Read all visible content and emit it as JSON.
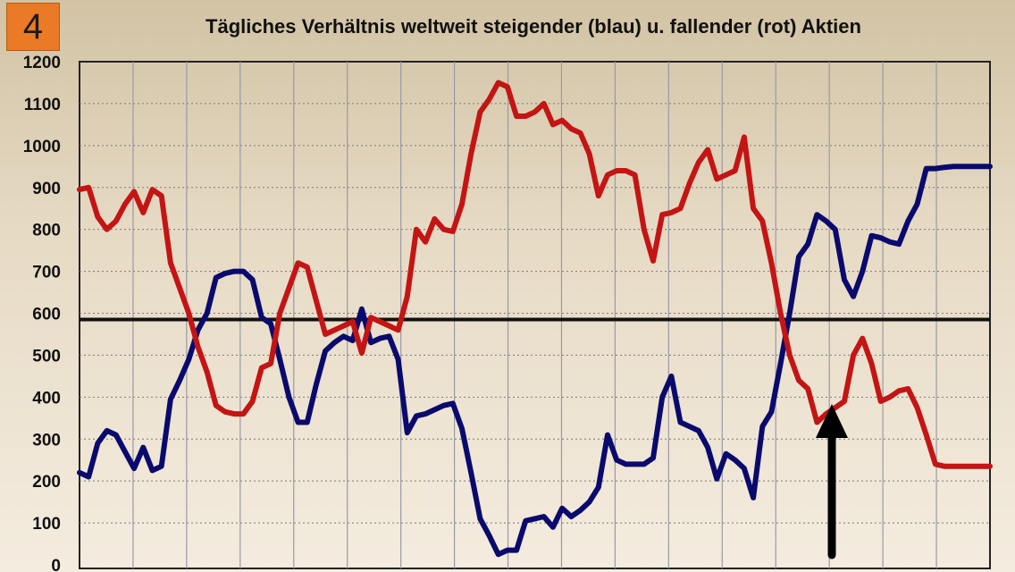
{
  "slide_number": "4",
  "chart_data": {
    "type": "line",
    "title": "Tägliches Verhältnis weltweit steigender (blau) u. fallender (rot) Aktien",
    "xlabel": "",
    "ylabel": "",
    "ylim": [
      0,
      1200
    ],
    "yticks": [
      0,
      100,
      200,
      300,
      400,
      500,
      600,
      700,
      800,
      900,
      1000,
      1100,
      1200
    ],
    "xlim": [
      0,
      100
    ],
    "grid": true,
    "reference_line": 585,
    "annotation": "arrow pointing up at the crossing of both series",
    "colors": {
      "blue": "#0a0a6e",
      "red": "#c41414",
      "reference": "#111111"
    },
    "series": [
      {
        "color": "#0a0a6e",
        "x": [
          0,
          1,
          2,
          3,
          4,
          5,
          6,
          7,
          8,
          9,
          10,
          11,
          12,
          13,
          14,
          15,
          16,
          17,
          18,
          19,
          20,
          21,
          22,
          23,
          24,
          25,
          26,
          27,
          28,
          29,
          30,
          31,
          32,
          33,
          34,
          35,
          36,
          37,
          38,
          39,
          40,
          41,
          42,
          43,
          44,
          45,
          46,
          47,
          48,
          49,
          50,
          51,
          52,
          53,
          54,
          55,
          56,
          57,
          58,
          59,
          60,
          61,
          62,
          63,
          64,
          65,
          66,
          67,
          68,
          69,
          70,
          71,
          72,
          73,
          74,
          75,
          76,
          77,
          78,
          79,
          80,
          81,
          82,
          83,
          84,
          85,
          86,
          87,
          88,
          89,
          90,
          91,
          92,
          93,
          94,
          95,
          96,
          97,
          98,
          99,
          100
        ],
        "values": [
          220,
          210,
          290,
          320,
          310,
          270,
          230,
          280,
          225,
          235,
          395,
          440,
          490,
          560,
          600,
          685,
          695,
          700,
          700,
          680,
          590,
          575,
          490,
          400,
          340,
          340,
          430,
          510,
          530,
          545,
          535,
          610,
          530,
          540,
          545,
          490,
          315,
          355,
          360,
          370,
          380,
          385,
          325,
          220,
          110,
          70,
          25,
          35,
          35,
          105,
          110,
          115,
          90,
          135,
          115,
          130,
          150,
          185,
          310,
          250,
          240,
          240,
          240,
          255,
          400,
          450,
          340,
          330,
          320,
          280,
          205,
          265,
          250,
          230,
          160,
          330,
          365,
          480,
          600,
          735,
          765,
          835,
          820,
          800,
          680,
          640,
          700,
          785,
          780,
          770,
          765,
          820,
          860,
          945,
          945,
          948,
          950,
          950,
          950,
          950,
          950
        ]
      },
      {
        "color": "#c41414",
        "x": [
          0,
          1,
          2,
          3,
          4,
          5,
          6,
          7,
          8,
          9,
          10,
          11,
          12,
          13,
          14,
          15,
          16,
          17,
          18,
          19,
          20,
          21,
          22,
          23,
          24,
          25,
          26,
          27,
          28,
          29,
          30,
          31,
          32,
          33,
          34,
          35,
          36,
          37,
          38,
          39,
          40,
          41,
          42,
          43,
          44,
          45,
          46,
          47,
          48,
          49,
          50,
          51,
          52,
          53,
          54,
          55,
          56,
          57,
          58,
          59,
          60,
          61,
          62,
          63,
          64,
          65,
          66,
          67,
          68,
          69,
          70,
          71,
          72,
          73,
          74,
          75,
          76,
          77,
          78,
          79,
          80,
          81,
          82,
          83,
          84,
          85,
          86,
          87,
          88,
          89,
          90,
          91,
          92,
          93,
          94,
          95,
          96,
          97,
          98,
          99,
          100
        ],
        "values": [
          895,
          900,
          830,
          800,
          820,
          860,
          890,
          840,
          895,
          880,
          720,
          660,
          600,
          520,
          460,
          380,
          365,
          360,
          360,
          390,
          470,
          480,
          600,
          660,
          720,
          710,
          630,
          550,
          560,
          570,
          580,
          505,
          590,
          580,
          570,
          560,
          640,
          800,
          770,
          825,
          800,
          795,
          860,
          980,
          1080,
          1110,
          1150,
          1140,
          1070,
          1070,
          1080,
          1100,
          1050,
          1060,
          1040,
          1030,
          980,
          880,
          930,
          940,
          940,
          930,
          800,
          725,
          835,
          840,
          850,
          910,
          960,
          990,
          920,
          930,
          940,
          1020,
          850,
          820,
          720,
          600,
          500,
          440,
          420,
          340,
          360,
          375,
          390,
          500,
          540,
          480,
          390,
          400,
          415,
          420,
          375,
          310,
          240,
          235,
          235,
          235,
          235,
          235,
          235
        ]
      }
    ]
  }
}
